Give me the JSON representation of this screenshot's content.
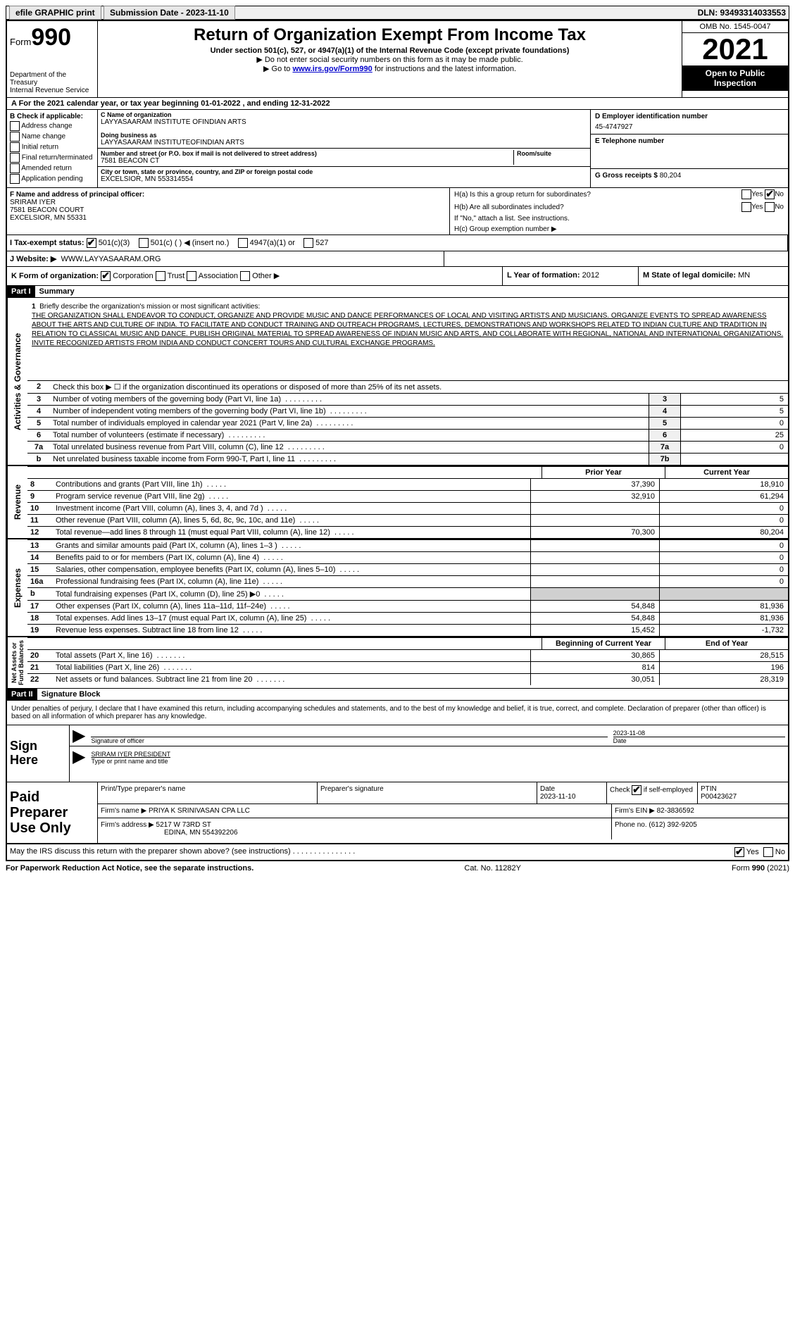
{
  "topbar": {
    "efile": "efile GRAPHIC print",
    "submission": "Submission Date - 2023-11-10",
    "dln": "DLN: 93493314033553"
  },
  "header": {
    "form_label": "Form",
    "form_num": "990",
    "dept": "Department of the Treasury",
    "irs": "Internal Revenue Service",
    "title": "Return of Organization Exempt From Income Tax",
    "sub1": "Under section 501(c), 527, or 4947(a)(1) of the Internal Revenue Code (except private foundations)",
    "sub2": "▶ Do not enter social security numbers on this form as it may be made public.",
    "sub3_pre": "▶ Go to ",
    "sub3_link": "www.irs.gov/Form990",
    "sub3_post": " for instructions and the latest information.",
    "omb": "OMB No. 1545-0047",
    "year": "2021",
    "open": "Open to Public Inspection"
  },
  "row_a": "A For the 2021 calendar year, or tax year beginning 01-01-2022   , and ending 12-31-2022",
  "section_b": {
    "hdr": "B Check if applicable:",
    "opts": [
      "Address change",
      "Name change",
      "Initial return",
      "Final return/terminated",
      "Amended return",
      "Application pending"
    ]
  },
  "section_c": {
    "name_lbl": "C Name of organization",
    "name": "LAYYASAARAM INSTITUTE OFINDIAN ARTS",
    "dba_lbl": "Doing business as",
    "dba": "LAYYASAARAM INSTITUTEOFINDIAN ARTS",
    "addr_lbl": "Number and street (or P.O. box if mail is not delivered to street address)",
    "addr": "7581 BEACON CT",
    "room_lbl": "Room/suite",
    "city_lbl": "City or town, state or province, country, and ZIP or foreign postal code",
    "city": "EXCELSIOR, MN  553314554"
  },
  "section_d": {
    "ein_lbl": "D Employer identification number",
    "ein": "45-4747927",
    "phone_lbl": "E Telephone number",
    "phone": "",
    "gross_lbl": "G Gross receipts $",
    "gross": "80,204"
  },
  "section_f": {
    "lbl": "F Name and address of principal officer:",
    "name": "SRIRAM IYER",
    "addr1": "7581 BEACON COURT",
    "addr2": "EXCELSIOR, MN  55331"
  },
  "section_h": {
    "ha": "H(a)  Is this a group return for subordinates?",
    "hb": "H(b)  Are all subordinates included?",
    "hb_note": "If \"No,\" attach a list. See instructions.",
    "hc": "H(c)  Group exemption number ▶"
  },
  "row_i": {
    "lbl": "I    Tax-exempt status:",
    "opt1": "501(c)(3)",
    "opt2": "501(c) (  ) ◀ (insert no.)",
    "opt3": "4947(a)(1) or",
    "opt4": "527"
  },
  "row_j": {
    "lbl": "J   Website: ▶",
    "val": "WWW.LAYYASAARAM.ORG"
  },
  "row_k": {
    "lbl": "K Form of organization:",
    "opts": [
      "Corporation",
      "Trust",
      "Association",
      "Other ▶"
    ]
  },
  "row_l": {
    "lbl": "L Year of formation:",
    "val": "2012"
  },
  "row_m": {
    "lbl": "M State of legal domicile:",
    "val": "MN"
  },
  "part1": {
    "hdr": "Part I",
    "title": "Summary",
    "line1_lbl": "Briefly describe the organization's mission or most significant activities:",
    "mission": "THE ORGANIZATION SHALL ENDEAVOR TO CONDUCT, ORGANIZE AND PROVIDE MUSIC AND DANCE PERFORMANCES OF LOCAL AND VISITING ARTISTS AND MUSICIANS. ORGANIZE EVENTS TO SPREAD AWARENESS ABOUT THE ARTS AND CULTURE OF INDIA. TO FACILITATE AND CONDUCT TRAINING AND OUTREACH PROGRAMS, LECTURES, DEMONSTRATIONS AND WORKSHOPS RELATED TO INDIAN CULTURE AND TRADITION IN RELATION TO CLASSICAL MUSIC AND DANCE. PUBLISH ORIGINAL MATERIAL TO SPREAD AWARENESS OF INDIAN MUSIC AND ARTS, AND COLLABORATE WITH REGIONAL, NATIONAL AND INTERNATIONAL ORGANIZATIONS. INVITE RECOGNIZED ARTISTS FROM INDIA AND CONDUCT CONCERT TOURS AND CULTURAL EXCHANGE PROGRAMS.",
    "line2": "Check this box ▶ ☐ if the organization discontinued its operations or disposed of more than 25% of its net assets.",
    "lines_ag": [
      {
        "n": "3",
        "d": "Number of voting members of the governing body (Part VI, line 1a)",
        "b": "3",
        "v": "5"
      },
      {
        "n": "4",
        "d": "Number of independent voting members of the governing body (Part VI, line 1b)",
        "b": "4",
        "v": "5"
      },
      {
        "n": "5",
        "d": "Total number of individuals employed in calendar year 2021 (Part V, line 2a)",
        "b": "5",
        "v": "0"
      },
      {
        "n": "6",
        "d": "Total number of volunteers (estimate if necessary)",
        "b": "6",
        "v": "25"
      },
      {
        "n": "7a",
        "d": "Total unrelated business revenue from Part VIII, column (C), line 12",
        "b": "7a",
        "v": "0"
      },
      {
        "n": "b",
        "d": "Net unrelated business taxable income from Form 990-T, Part I, line 11",
        "b": "7b",
        "v": ""
      }
    ],
    "prior_hdr": "Prior Year",
    "current_hdr": "Current Year",
    "revenue": [
      {
        "n": "8",
        "d": "Contributions and grants (Part VIII, line 1h)",
        "p": "37,390",
        "c": "18,910"
      },
      {
        "n": "9",
        "d": "Program service revenue (Part VIII, line 2g)",
        "p": "32,910",
        "c": "61,294"
      },
      {
        "n": "10",
        "d": "Investment income (Part VIII, column (A), lines 3, 4, and 7d )",
        "p": "",
        "c": "0"
      },
      {
        "n": "11",
        "d": "Other revenue (Part VIII, column (A), lines 5, 6d, 8c, 9c, 10c, and 11e)",
        "p": "",
        "c": "0"
      },
      {
        "n": "12",
        "d": "Total revenue—add lines 8 through 11 (must equal Part VIII, column (A), line 12)",
        "p": "70,300",
        "c": "80,204"
      }
    ],
    "expenses": [
      {
        "n": "13",
        "d": "Grants and similar amounts paid (Part IX, column (A), lines 1–3 )",
        "p": "",
        "c": "0"
      },
      {
        "n": "14",
        "d": "Benefits paid to or for members (Part IX, column (A), line 4)",
        "p": "",
        "c": "0"
      },
      {
        "n": "15",
        "d": "Salaries, other compensation, employee benefits (Part IX, column (A), lines 5–10)",
        "p": "",
        "c": "0"
      },
      {
        "n": "16a",
        "d": "Professional fundraising fees (Part IX, column (A), line 11e)",
        "p": "",
        "c": "0"
      },
      {
        "n": "b",
        "d": "Total fundraising expenses (Part IX, column (D), line 25) ▶0",
        "p": "grey",
        "c": "grey"
      },
      {
        "n": "17",
        "d": "Other expenses (Part IX, column (A), lines 11a–11d, 11f–24e)",
        "p": "54,848",
        "c": "81,936"
      },
      {
        "n": "18",
        "d": "Total expenses. Add lines 13–17 (must equal Part IX, column (A), line 25)",
        "p": "54,848",
        "c": "81,936"
      },
      {
        "n": "19",
        "d": "Revenue less expenses. Subtract line 18 from line 12",
        "p": "15,452",
        "c": "-1,732"
      }
    ],
    "begin_hdr": "Beginning of Current Year",
    "end_hdr": "End of Year",
    "netassets": [
      {
        "n": "20",
        "d": "Total assets (Part X, line 16)",
        "p": "30,865",
        "c": "28,515"
      },
      {
        "n": "21",
        "d": "Total liabilities (Part X, line 26)",
        "p": "814",
        "c": "196"
      },
      {
        "n": "22",
        "d": "Net assets or fund balances. Subtract line 21 from line 20",
        "p": "30,051",
        "c": "28,319"
      }
    ]
  },
  "part2": {
    "hdr": "Part II",
    "title": "Signature Block",
    "penalties": "Under penalties of perjury, I declare that I have examined this return, including accompanying schedules and statements, and to the best of my knowledge and belief, it is true, correct, and complete. Declaration of preparer (other than officer) is based on all information of which preparer has any knowledge."
  },
  "sign": {
    "lbl": "Sign Here",
    "sig_lbl": "Signature of officer",
    "date_lbl": "Date",
    "date": "2023-11-08",
    "name": "SRIRAM IYER  PRESIDENT",
    "name_lbl": "Type or print name and title"
  },
  "paid": {
    "lbl": "Paid Preparer Use Only",
    "prep_name_lbl": "Print/Type preparer's name",
    "prep_sig_lbl": "Preparer's signature",
    "date_lbl": "Date",
    "date": "2023-11-10",
    "check_lbl": "Check         if self-employed",
    "ptin_lbl": "PTIN",
    "ptin": "P00423627",
    "firm_name_lbl": "Firm's name     ▶",
    "firm_name": "PRIYA K SRINIVASAN CPA LLC",
    "firm_ein_lbl": "Firm's EIN ▶",
    "firm_ein": "82-3836592",
    "firm_addr_lbl": "Firm's address ▶",
    "firm_addr1": "5217 W 73RD ST",
    "firm_addr2": "EDINA, MN  554392206",
    "phone_lbl": "Phone no.",
    "phone": "(612) 392-9205"
  },
  "discuss": "May the IRS discuss this return with the preparer shown above? (see instructions)",
  "footer": {
    "left": "For Paperwork Reduction Act Notice, see the separate instructions.",
    "mid": "Cat. No. 11282Y",
    "right": "Form 990 (2021)"
  }
}
